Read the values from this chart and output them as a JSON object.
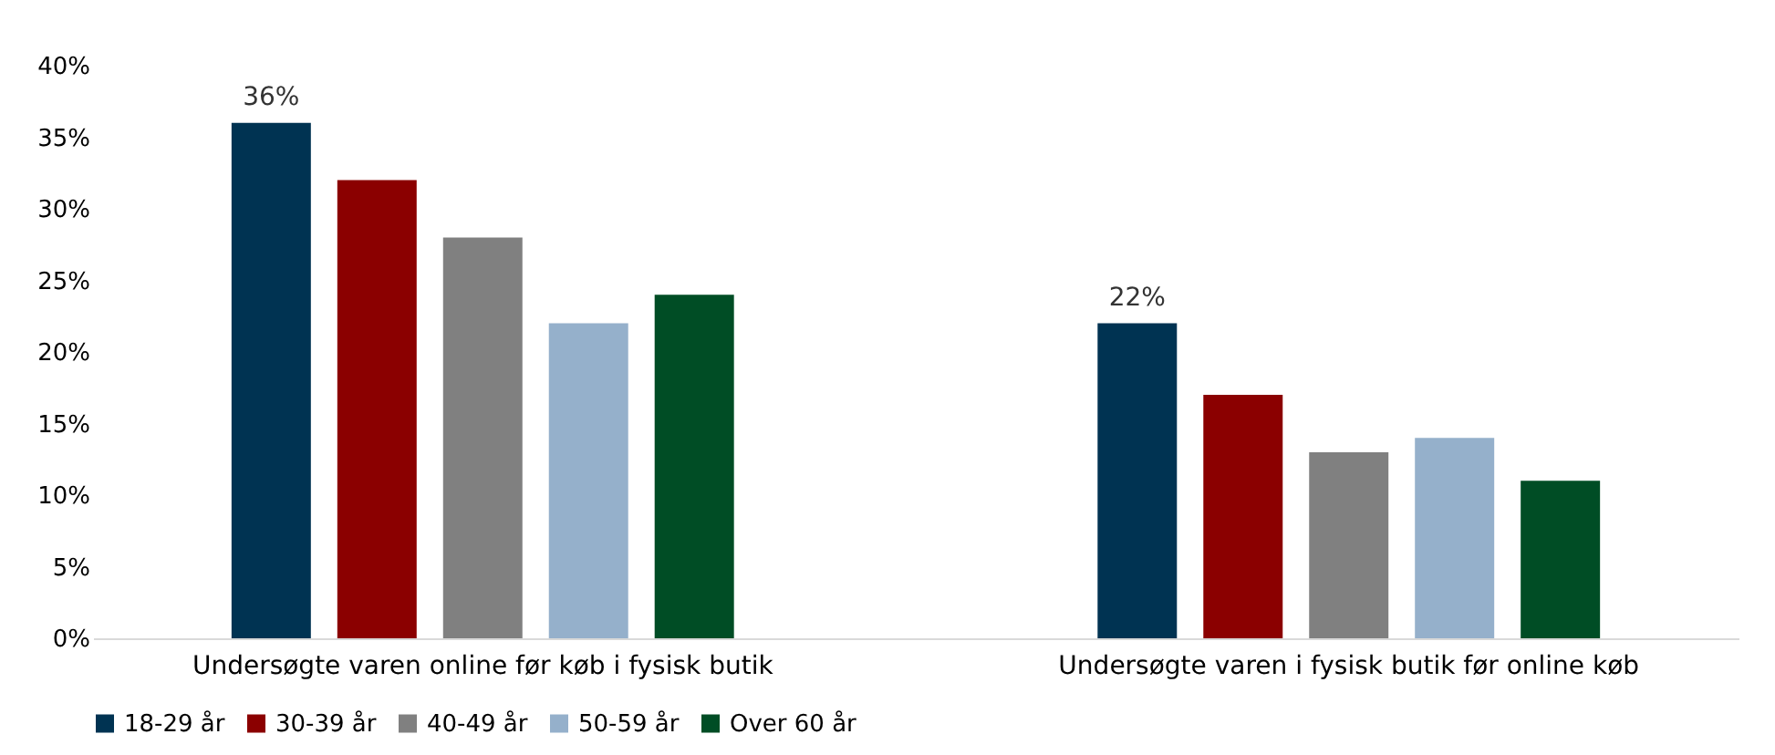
{
  "chart_data": {
    "type": "bar",
    "categories": [
      "Undersøgte varen online før køb i fysisk butik",
      "Undersøgte varen i fysisk butik før online køb"
    ],
    "series": [
      {
        "name": "18-29 år",
        "color": "#003352",
        "values": [
          36,
          22
        ],
        "value_labels": [
          "36%",
          "22%"
        ]
      },
      {
        "name": "30-39 år",
        "color": "#8b0000",
        "values": [
          32,
          17
        ]
      },
      {
        "name": "40-49 år",
        "color": "#808080",
        "values": [
          28,
          13
        ]
      },
      {
        "name": "50-59 år",
        "color": "#95b0cb",
        "values": [
          22,
          14
        ]
      },
      {
        "name": "Over 60 år",
        "color": "#004d25",
        "values": [
          24,
          11
        ]
      }
    ],
    "ylim": [
      0,
      40
    ],
    "yticks": [
      {
        "value": 0,
        "label": "0%"
      },
      {
        "value": 5,
        "label": "5%"
      },
      {
        "value": 10,
        "label": "10%"
      },
      {
        "value": 15,
        "label": "15%"
      },
      {
        "value": 20,
        "label": "20%"
      },
      {
        "value": 25,
        "label": "25%"
      },
      {
        "value": 30,
        "label": "30%"
      },
      {
        "value": 35,
        "label": "35%"
      },
      {
        "value": 40,
        "label": "40%"
      }
    ],
    "grid": false,
    "legend": "bottom"
  }
}
